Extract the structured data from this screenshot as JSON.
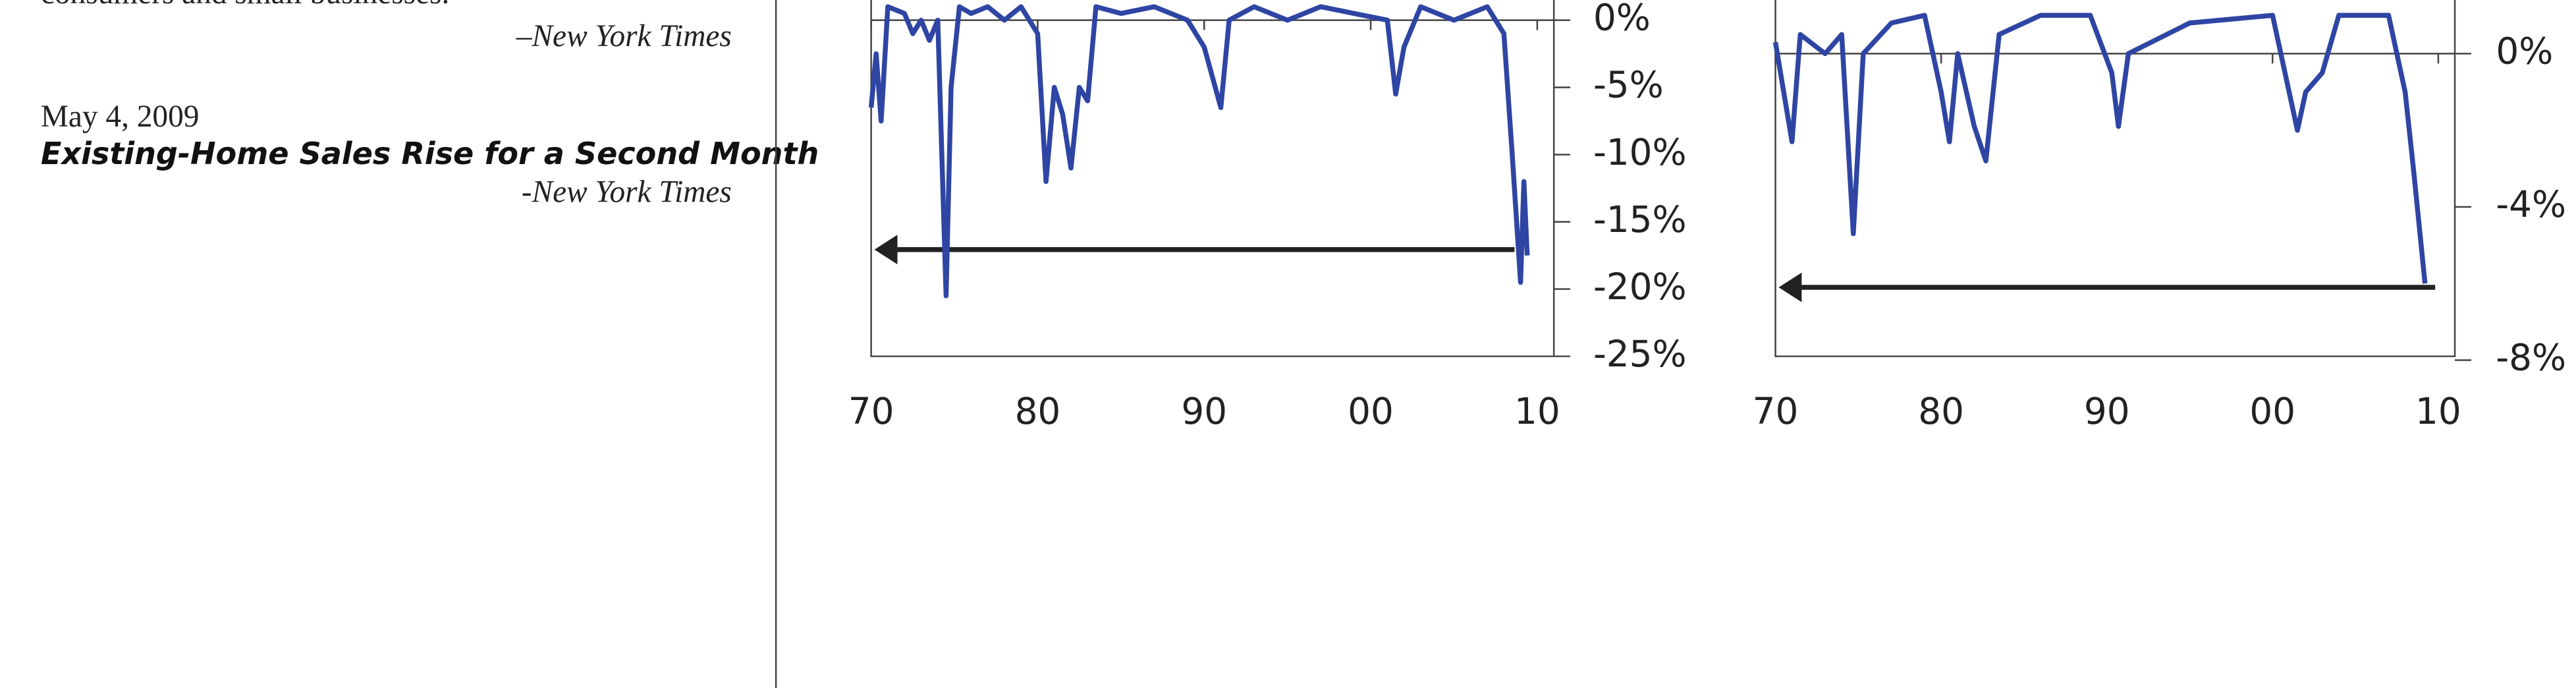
{
  "sidebar": {
    "quote_end": "consumers and small businesses.",
    "source_1": "–New York Times",
    "date": "May 4, 2009",
    "headline": "Existing-Home Sales Rise for a Second Month",
    "source_2": "-New York Times"
  },
  "chart_data": [
    {
      "type": "line",
      "xlim": [
        1970,
        2011
      ],
      "ylim": [
        -25,
        1.5
      ],
      "xticks": [
        {
          "value": 1970,
          "label": "70"
        },
        {
          "value": 1980,
          "label": "80"
        },
        {
          "value": 1990,
          "label": "90"
        },
        {
          "value": 2000,
          "label": "00"
        },
        {
          "value": 2010,
          "label": "10"
        }
      ],
      "yticks": [
        {
          "value": 0,
          "label": "0%"
        },
        {
          "value": -5,
          "label": "-5%"
        },
        {
          "value": -10,
          "label": "-10%"
        },
        {
          "value": -15,
          "label": "-15%"
        },
        {
          "value": -20,
          "label": "-20%"
        },
        {
          "value": -25,
          "label": "-25%"
        }
      ],
      "x": [
        1970,
        1970.3,
        1970.6,
        1971,
        1972,
        1972.5,
        1973,
        1973.5,
        1974,
        1974.5,
        1974.8,
        1975.3,
        1976,
        1977,
        1978,
        1979,
        1980,
        1980.5,
        1981,
        1981.5,
        1982,
        1982.5,
        1983,
        1983.5,
        1985,
        1987,
        1989,
        1990,
        1991,
        1991.5,
        1993,
        1995,
        1997,
        1999,
        2001,
        2001.5,
        2002,
        2003,
        2005,
        2007,
        2008,
        2008.5,
        2009,
        2009.2,
        2009.4
      ],
      "series": [
        {
          "color": "#2e45a3",
          "values": [
            -6.5,
            -2.5,
            -7.5,
            1,
            0.5,
            -1,
            0,
            -1.5,
            0,
            -20.5,
            -5,
            1,
            0.5,
            1,
            0,
            1,
            -1,
            -12,
            -5,
            -7,
            -11,
            -5,
            -6,
            1,
            0.5,
            1,
            0,
            -2,
            -6.5,
            0,
            1,
            0,
            1,
            0.5,
            0,
            -5.5,
            -2,
            1,
            0,
            1,
            -1,
            -10,
            -19.5,
            -12,
            -17.5
          ]
        }
      ]
    },
    {
      "type": "line",
      "xlim": [
        1970,
        2011
      ],
      "ylim": [
        -7.9,
        1.4
      ],
      "xticks": [
        {
          "value": 1970,
          "label": "70"
        },
        {
          "value": 1980,
          "label": "80"
        },
        {
          "value": 1990,
          "label": "90"
        },
        {
          "value": 2000,
          "label": "00"
        },
        {
          "value": 2010,
          "label": "10"
        }
      ],
      "yticks": [
        {
          "value": 0,
          "label": "0%"
        },
        {
          "value": -4,
          "label": "-4%"
        },
        {
          "value": -8,
          "label": "-8%"
        }
      ],
      "x": [
        1970,
        1970.5,
        1971,
        1971.5,
        1973,
        1974,
        1974.7,
        1975.3,
        1977,
        1979,
        1980,
        1980.5,
        1981,
        1982,
        1982.7,
        1983.5,
        1986,
        1989,
        1990.3,
        1990.7,
        1991.3,
        1995,
        2000,
        2001,
        2001.5,
        2002,
        2003,
        2004,
        2007,
        2008,
        2008.5,
        2009.2
      ],
      "series": [
        {
          "color": "#2e45a3",
          "values": [
            0.3,
            -1,
            -2.3,
            0.5,
            0,
            0.5,
            -4.7,
            0,
            0.8,
            1,
            -1,
            -2.3,
            0,
            -1.9,
            -2.8,
            0.5,
            1,
            1,
            -0.5,
            -1.9,
            0,
            0.8,
            1,
            -1,
            -2,
            -1,
            -0.5,
            1,
            1,
            -1,
            -3,
            -6
          ]
        }
      ]
    }
  ]
}
